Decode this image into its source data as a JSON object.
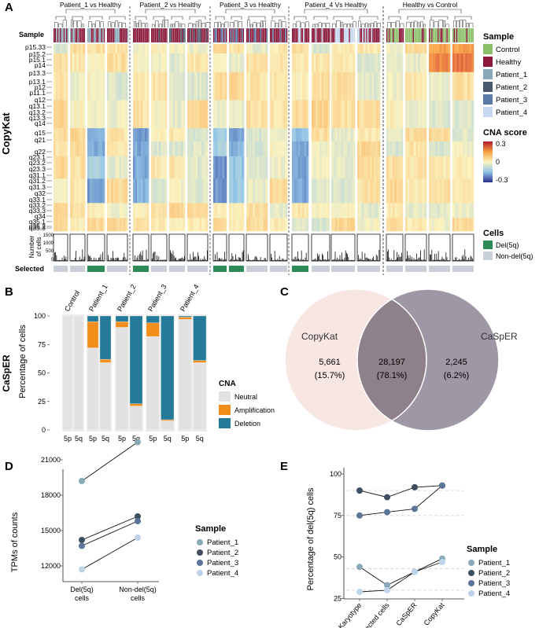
{
  "panelA": {
    "letter": "A",
    "ylabel": "CopyKat",
    "sample_row_label": "Sample",
    "selected_row_label": "Selected",
    "ncells_label_1": "Number",
    "ncells_label_2": "of cells",
    "ncells_tick_top": "1500",
    "ncells_tick_mid": "1000",
    "ncells_tick_low": "500",
    "ncells_tick_zero": "0",
    "groups": [
      "Patient_1 vs Healthy",
      "Patient_2 vs Healthy",
      "Patient_3 vs Healthy",
      "Patient_4 Vs Healthy",
      "Healthy vs Control"
    ],
    "bands": [
      "p15.33",
      "p15.2",
      "p15.1",
      "p14",
      "p13.3",
      "p13.1",
      "p12",
      "p11.1",
      "q12",
      "q13.1",
      "q13.2",
      "q13.3",
      "q14",
      "q15",
      "q21",
      "q22",
      "q23.1",
      "q23.2",
      "q23.3",
      "q31.1",
      "q31.2",
      "q31.3",
      "q32",
      "q33.1",
      "q33.2",
      "q33.3",
      "q34",
      "q35.1",
      "q35.2",
      "q35.3"
    ],
    "legend_sample_title": "Sample",
    "legend_sample": [
      {
        "label": "Control",
        "color": "#8cbf6a"
      },
      {
        "label": "Healthy",
        "color": "#8b1a3a"
      },
      {
        "label": "Patient_1",
        "color": "#8aa9b8"
      },
      {
        "label": "Patient_2",
        "color": "#4a5a6c"
      },
      {
        "label": "Patient_3",
        "color": "#5c7aa6"
      },
      {
        "label": "Patient_4",
        "color": "#c6d8ee"
      }
    ],
    "legend_cna_title": "CNA score",
    "cna_ticks": [
      "0.3",
      "0",
      "-0.3"
    ],
    "legend_cells_title": "Cells",
    "legend_cells": [
      {
        "label": "Del(5q)",
        "color": "#2e8b57"
      },
      {
        "label": "Non-del(5q)",
        "color": "#c9d0d8"
      }
    ]
  },
  "panelB": {
    "letter": "B",
    "ylabel_side": "CaSpER",
    "ylabel": "Percentage of cells",
    "yticks": [
      "0",
      "25",
      "50",
      "75",
      "100"
    ],
    "chart_data": {
      "type": "bar",
      "title": "",
      "ylabel": "Percentage of cells",
      "ylim": [
        0,
        100
      ],
      "groups": [
        "Control",
        "Patient_1",
        "Patient_2",
        "Patient_3",
        "Patient_4"
      ],
      "categories": [
        "5p",
        "5q"
      ],
      "series_names": [
        "Neutral",
        "Amplification",
        "Deletion"
      ],
      "colors": {
        "Neutral": "#e2e2e2",
        "Amplification": "#f28e1c",
        "Deletion": "#237a99"
      },
      "values": [
        {
          "group": "Control",
          "cat": "5p",
          "Neutral": 100,
          "Amplification": 0,
          "Deletion": 0
        },
        {
          "group": "Control",
          "cat": "5q",
          "Neutral": 100,
          "Amplification": 0,
          "Deletion": 0
        },
        {
          "group": "Patient_1",
          "cat": "5p",
          "Neutral": 72,
          "Amplification": 23,
          "Deletion": 5
        },
        {
          "group": "Patient_1",
          "cat": "5q",
          "Neutral": 59,
          "Amplification": 3,
          "Deletion": 38
        },
        {
          "group": "Patient_2",
          "cat": "5p",
          "Neutral": 90,
          "Amplification": 5,
          "Deletion": 5
        },
        {
          "group": "Patient_2",
          "cat": "5q",
          "Neutral": 21,
          "Amplification": 2,
          "Deletion": 77
        },
        {
          "group": "Patient_3",
          "cat": "5p",
          "Neutral": 82,
          "Amplification": 12,
          "Deletion": 6
        },
        {
          "group": "Patient_3",
          "cat": "5q",
          "Neutral": 8,
          "Amplification": 1,
          "Deletion": 91
        },
        {
          "group": "Patient_4",
          "cat": "5p",
          "Neutral": 97,
          "Amplification": 2,
          "Deletion": 1
        },
        {
          "group": "Patient_4",
          "cat": "5q",
          "Neutral": 59,
          "Amplification": 2,
          "Deletion": 39
        }
      ]
    },
    "legend_title": "CNA",
    "legend": [
      "Neutral",
      "Amplification",
      "Deletion"
    ]
  },
  "panelC": {
    "letter": "C",
    "left_label": "CopyKat",
    "right_label": "CaSpER",
    "left_count": "5,661",
    "left_pct": "(15.7%)",
    "mid_count": "28,197",
    "mid_pct": "(78.1%)",
    "right_count": "2,245",
    "right_pct": "(6.2%)",
    "left_color": "#f7e3e0",
    "right_color": "#9d93a3",
    "overlap_color": "#9b8a92"
  },
  "panelD": {
    "letter": "D",
    "ylabel": "TPMs of counts",
    "yticks": [
      "12000",
      "15000",
      "18000",
      "21000"
    ],
    "xcat1_line1": "Del(5q)",
    "xcat1_line2": "cells",
    "xcat2_line1": "Non-del(5q)",
    "xcat2_line2": "cells",
    "chart_data": {
      "type": "scatter",
      "xlabel": "",
      "ylabel": "TPMs of counts",
      "ylim": [
        11000,
        23000
      ],
      "x": [
        "Del(5q) cells",
        "Non-del(5q) cells"
      ],
      "series": [
        {
          "name": "Patient_1",
          "values": [
            19200,
            22500
          ]
        },
        {
          "name": "Patient_2",
          "values": [
            14200,
            16200
          ]
        },
        {
          "name": "Patient_3",
          "values": [
            13700,
            15800
          ]
        },
        {
          "name": "Patient_4",
          "values": [
            11700,
            14400
          ]
        }
      ]
    },
    "legend_title": "Sample",
    "legend": [
      {
        "label": "Patient_1",
        "color": "#8aa9b8"
      },
      {
        "label": "Patient_2",
        "color": "#3e4e60"
      },
      {
        "label": "Patient_3",
        "color": "#5c7498"
      },
      {
        "label": "Patient_4",
        "color": "#bed3ea"
      }
    ]
  },
  "panelE": {
    "letter": "E",
    "ylabel": "Percentage of del(5q) cells",
    "yticks": [
      "25",
      "50",
      "75",
      "100"
    ],
    "xcats": [
      "Karyotype",
      "Selected cells",
      "CaSpER",
      "CopyKat"
    ],
    "chart_data": {
      "type": "line",
      "xlabel": "",
      "ylabel": "Percentage of del(5q) cells",
      "ylim": [
        20,
        100
      ],
      "x": [
        "Karyotype",
        "Selected cells",
        "CaSpER",
        "CopyKat"
      ],
      "hlines": [
        90,
        75,
        43,
        30
      ],
      "series": [
        {
          "name": "Patient_1",
          "values": [
            44,
            33,
            41,
            49
          ]
        },
        {
          "name": "Patient_2",
          "values": [
            90,
            86,
            92,
            93
          ]
        },
        {
          "name": "Patient_3",
          "values": [
            75,
            77,
            79,
            93
          ]
        },
        {
          "name": "Patient_4",
          "values": [
            29,
            30,
            41,
            47
          ]
        }
      ]
    },
    "legend_title": "Sample",
    "legend": [
      {
        "label": "Patient_1",
        "color": "#8aa9b8"
      },
      {
        "label": "Patient_2",
        "color": "#3e4e60"
      },
      {
        "label": "Patient_3",
        "color": "#5c7498"
      },
      {
        "label": "Patient_4",
        "color": "#bed3ea"
      }
    ]
  }
}
